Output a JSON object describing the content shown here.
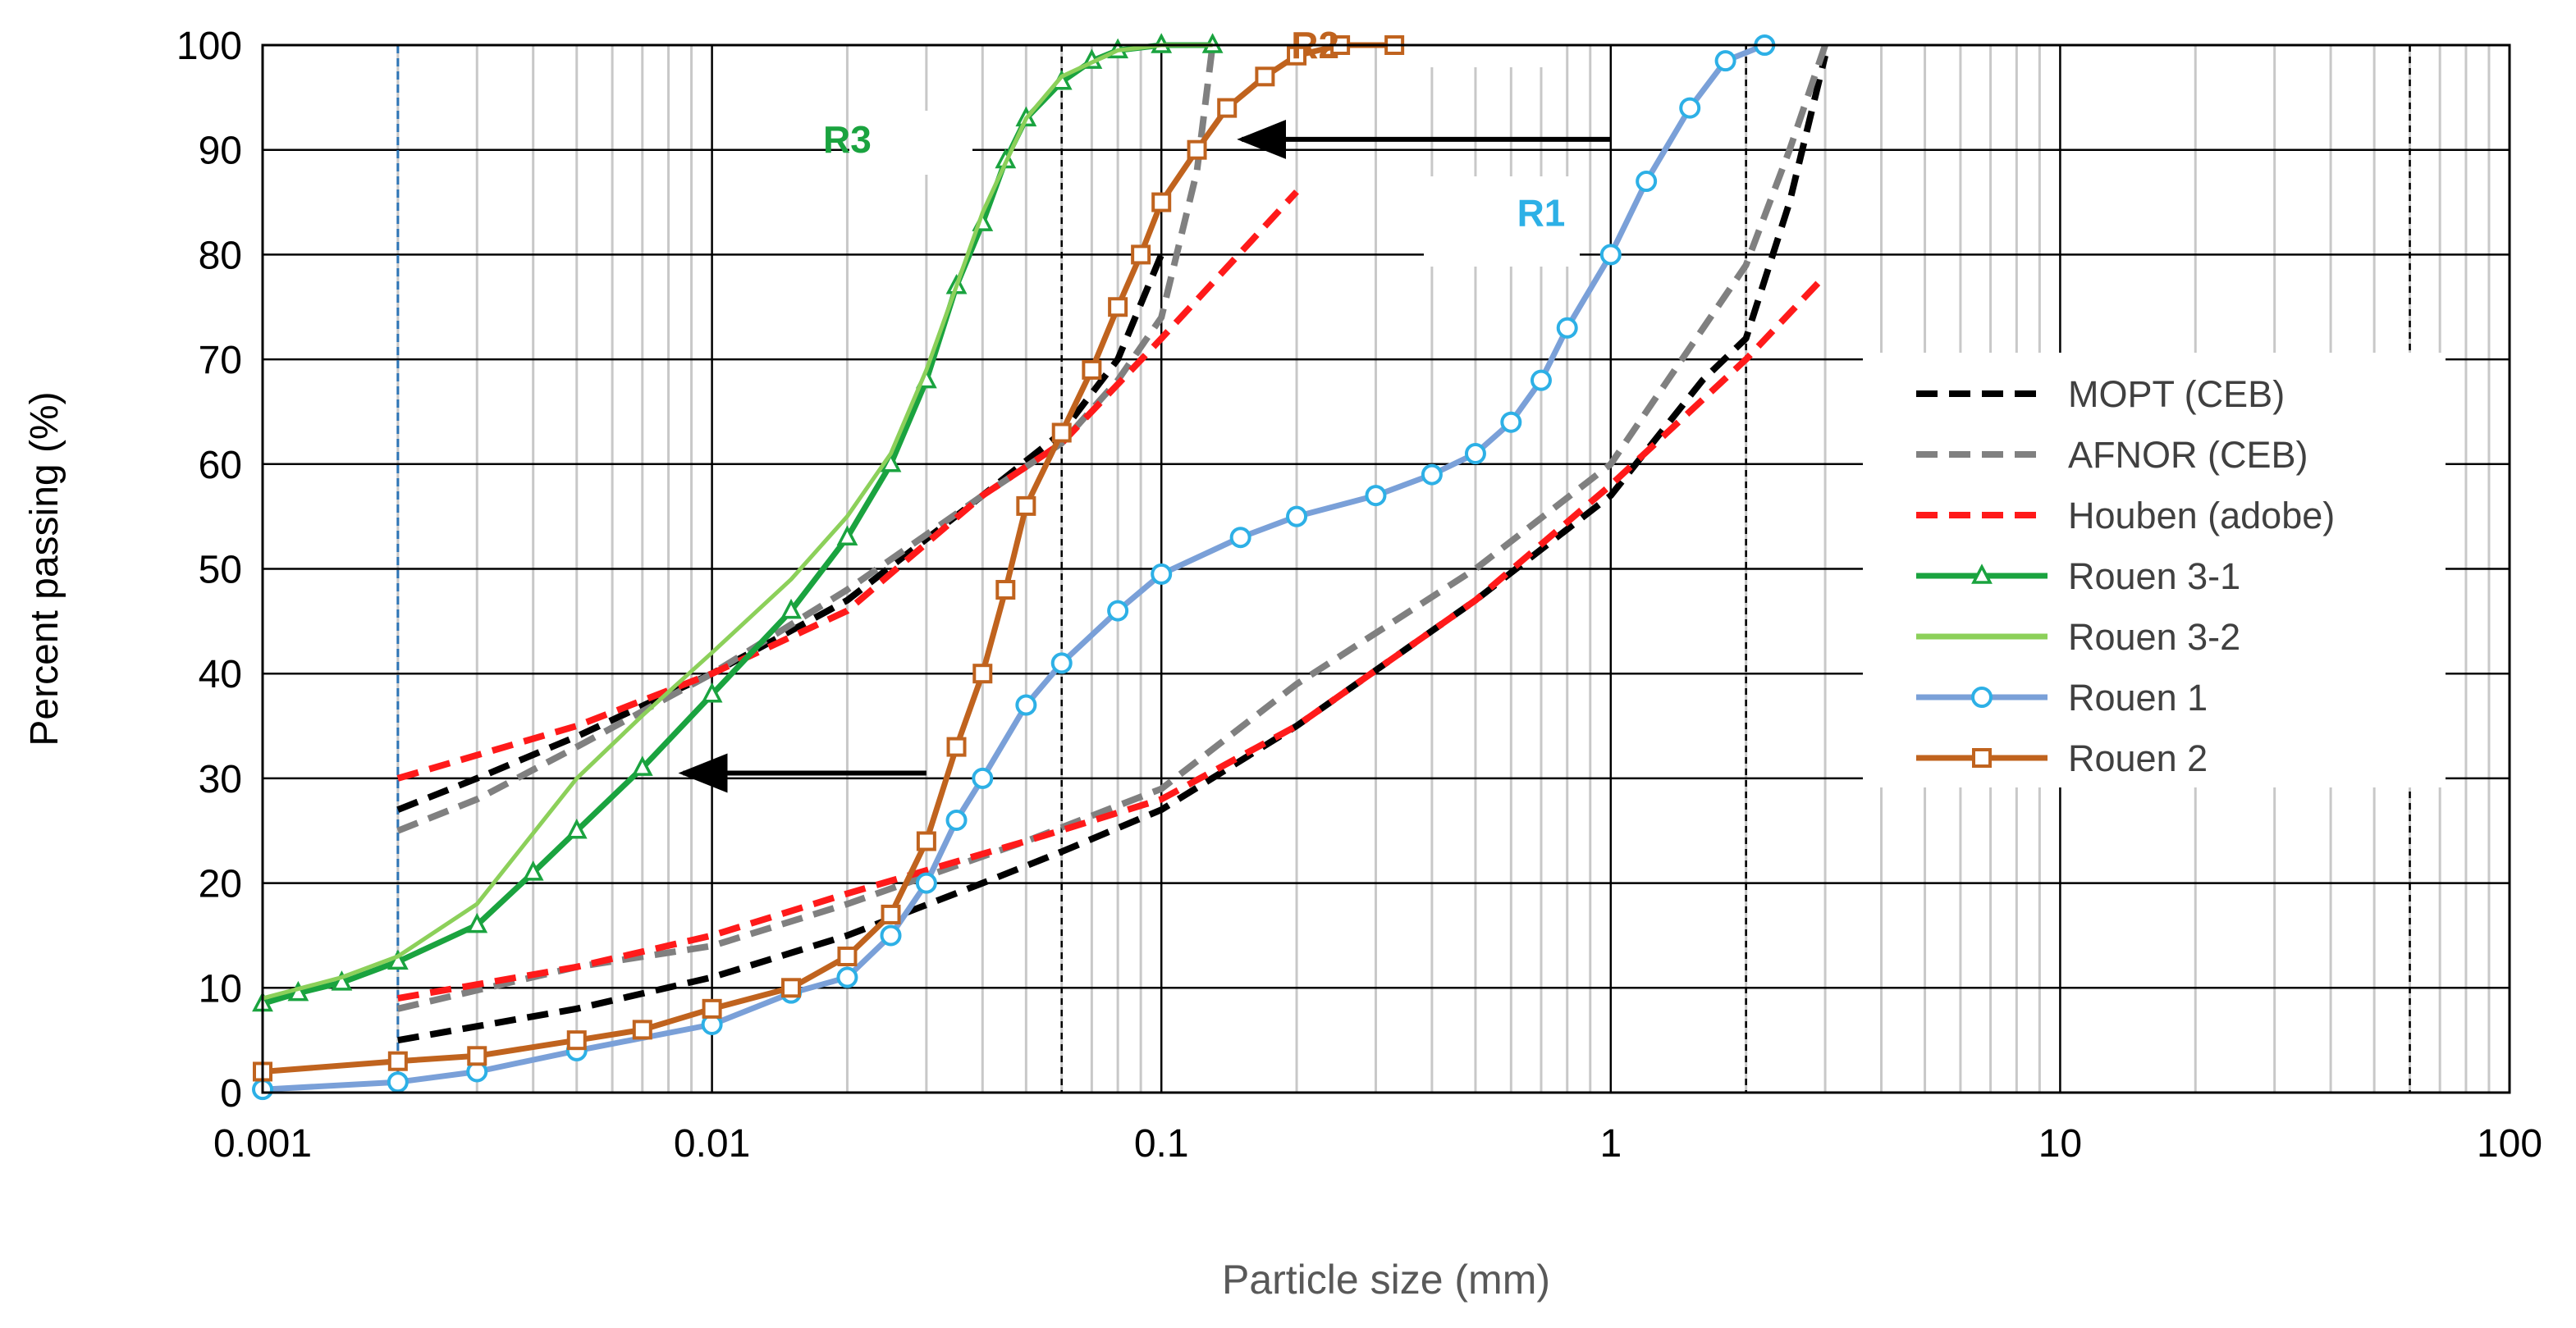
{
  "chart_data": {
    "type": "line",
    "x_scale": "log",
    "xlabel": "Particle size (mm)",
    "ylabel": "Percent passing (%)",
    "xlim": [
      0.001,
      100
    ],
    "ylim": [
      0,
      100
    ],
    "x_ticks": [
      "0.001",
      "0.01",
      "0.1",
      "1",
      "10",
      "100"
    ],
    "y_ticks": [
      "0",
      "10",
      "20",
      "30",
      "40",
      "50",
      "60",
      "70",
      "80",
      "90",
      "100"
    ],
    "grid": true,
    "legend_position": "right",
    "reference_lines_x": [
      0.002,
      0.06,
      2,
      60
    ],
    "series": [
      {
        "name": "MOPT (CEB)",
        "color": "#000000",
        "style": "dashed",
        "marker": "none",
        "points": [
          [
            0.002,
            27
          ],
          [
            0.003,
            30
          ],
          [
            0.005,
            34
          ],
          [
            0.01,
            40
          ],
          [
            0.02,
            47
          ],
          [
            0.04,
            57
          ],
          [
            0.06,
            63
          ],
          [
            0.08,
            70
          ],
          [
            0.1,
            80
          ]
        ]
      },
      {
        "name": "MOPT (CEB)",
        "color": "#000000",
        "style": "dashed",
        "marker": "none",
        "legend": false,
        "points": [
          [
            0.002,
            5
          ],
          [
            0.005,
            8
          ],
          [
            0.01,
            11
          ],
          [
            0.02,
            15
          ],
          [
            0.04,
            20
          ],
          [
            0.06,
            23
          ],
          [
            0.1,
            27
          ],
          [
            0.2,
            35
          ],
          [
            0.5,
            47
          ],
          [
            1,
            57
          ],
          [
            1.6,
            68
          ],
          [
            2,
            72
          ],
          [
            2.5,
            85
          ],
          [
            3,
            99
          ]
        ]
      },
      {
        "name": "AFNOR (CEB)",
        "color": "#808080",
        "style": "dashed",
        "marker": "none",
        "points": [
          [
            0.002,
            25
          ],
          [
            0.003,
            28
          ],
          [
            0.005,
            33
          ],
          [
            0.01,
            40
          ],
          [
            0.02,
            48
          ],
          [
            0.04,
            57
          ],
          [
            0.06,
            62
          ],
          [
            0.08,
            68
          ],
          [
            0.1,
            74
          ],
          [
            0.12,
            88
          ],
          [
            0.13,
            100
          ]
        ]
      },
      {
        "name": "AFNOR (CEB)",
        "color": "#808080",
        "style": "dashed",
        "marker": "none",
        "legend": false,
        "points": [
          [
            0.002,
            8
          ],
          [
            0.005,
            12
          ],
          [
            0.01,
            14
          ],
          [
            0.02,
            18
          ],
          [
            0.05,
            24
          ],
          [
            0.1,
            29
          ],
          [
            0.2,
            39
          ],
          [
            0.5,
            50
          ],
          [
            1,
            60
          ],
          [
            2,
            79
          ],
          [
            2.5,
            90
          ],
          [
            3,
            100
          ]
        ]
      },
      {
        "name": "Houben (adobe)",
        "color": "#ff1a1a",
        "style": "dashed",
        "marker": "none",
        "points": [
          [
            0.002,
            30
          ],
          [
            0.005,
            35
          ],
          [
            0.01,
            40
          ],
          [
            0.02,
            46
          ],
          [
            0.04,
            57
          ],
          [
            0.06,
            62
          ],
          [
            0.1,
            72
          ],
          [
            0.2,
            86
          ]
        ]
      },
      {
        "name": "Houben (adobe)",
        "color": "#ff1a1a",
        "style": "dashed",
        "marker": "none",
        "legend": false,
        "points": [
          [
            0.002,
            9
          ],
          [
            0.005,
            12
          ],
          [
            0.01,
            15
          ],
          [
            0.02,
            19
          ],
          [
            0.05,
            24
          ],
          [
            0.1,
            28
          ],
          [
            0.2,
            35
          ],
          [
            0.5,
            47
          ],
          [
            1,
            58
          ],
          [
            2,
            70
          ],
          [
            3,
            78
          ]
        ]
      },
      {
        "name": "Rouen 3-1",
        "color": "#1aa33f",
        "style": "solid",
        "marker": "triangle",
        "points": [
          [
            0.001,
            8.5
          ],
          [
            0.0012,
            9.5
          ],
          [
            0.0015,
            10.5
          ],
          [
            0.002,
            12.5
          ],
          [
            0.003,
            16
          ],
          [
            0.004,
            21
          ],
          [
            0.005,
            25
          ],
          [
            0.007,
            31
          ],
          [
            0.01,
            38
          ],
          [
            0.015,
            46
          ],
          [
            0.02,
            53
          ],
          [
            0.025,
            60
          ],
          [
            0.03,
            68
          ],
          [
            0.035,
            77
          ],
          [
            0.04,
            83
          ],
          [
            0.045,
            89
          ],
          [
            0.05,
            93
          ],
          [
            0.06,
            96.5
          ],
          [
            0.07,
            98.5
          ],
          [
            0.08,
            99.5
          ],
          [
            0.1,
            100
          ],
          [
            0.13,
            100
          ]
        ]
      },
      {
        "name": "Rouen 3-2",
        "color": "#8cd05a",
        "style": "solid",
        "marker": "none",
        "points": [
          [
            0.001,
            9
          ],
          [
            0.0015,
            11
          ],
          [
            0.002,
            13
          ],
          [
            0.003,
            18
          ],
          [
            0.005,
            30
          ],
          [
            0.007,
            36
          ],
          [
            0.01,
            42
          ],
          [
            0.015,
            49
          ],
          [
            0.02,
            55
          ],
          [
            0.025,
            61
          ],
          [
            0.03,
            69
          ],
          [
            0.035,
            77
          ],
          [
            0.04,
            84
          ],
          [
            0.05,
            93
          ],
          [
            0.06,
            97
          ],
          [
            0.08,
            99.5
          ],
          [
            0.1,
            100
          ],
          [
            0.13,
            100
          ]
        ]
      },
      {
        "name": "Rouen 1",
        "color": "#7aa0d8",
        "marker_color": "#2db0e6",
        "style": "solid",
        "marker": "circle",
        "points": [
          [
            0.001,
            0.3
          ],
          [
            0.002,
            1
          ],
          [
            0.003,
            2
          ],
          [
            0.005,
            4
          ],
          [
            0.01,
            6.5
          ],
          [
            0.015,
            9.5
          ],
          [
            0.02,
            11
          ],
          [
            0.025,
            15
          ],
          [
            0.03,
            20
          ],
          [
            0.035,
            26
          ],
          [
            0.04,
            30
          ],
          [
            0.05,
            37
          ],
          [
            0.06,
            41
          ],
          [
            0.08,
            46
          ],
          [
            0.1,
            49.5
          ],
          [
            0.15,
            53
          ],
          [
            0.2,
            55
          ],
          [
            0.3,
            57
          ],
          [
            0.4,
            59
          ],
          [
            0.5,
            61
          ],
          [
            0.6,
            64
          ],
          [
            0.7,
            68
          ],
          [
            0.8,
            73
          ],
          [
            1,
            80
          ],
          [
            1.2,
            87
          ],
          [
            1.5,
            94
          ],
          [
            1.8,
            98.5
          ],
          [
            2.2,
            100
          ]
        ]
      },
      {
        "name": "Rouen 2",
        "color": "#c0631e",
        "style": "solid",
        "marker": "square",
        "points": [
          [
            0.001,
            2
          ],
          [
            0.002,
            3
          ],
          [
            0.003,
            3.5
          ],
          [
            0.005,
            5
          ],
          [
            0.007,
            6
          ],
          [
            0.01,
            8
          ],
          [
            0.015,
            10
          ],
          [
            0.02,
            13
          ],
          [
            0.025,
            17
          ],
          [
            0.03,
            24
          ],
          [
            0.035,
            33
          ],
          [
            0.04,
            40
          ],
          [
            0.045,
            48
          ],
          [
            0.05,
            56
          ],
          [
            0.06,
            63
          ],
          [
            0.07,
            69
          ],
          [
            0.08,
            75
          ],
          [
            0.09,
            80
          ],
          [
            0.1,
            85
          ],
          [
            0.12,
            90
          ],
          [
            0.14,
            94
          ],
          [
            0.17,
            97
          ],
          [
            0.2,
            99
          ],
          [
            0.25,
            100
          ],
          [
            0.33,
            100
          ]
        ]
      }
    ],
    "annotations": [
      {
        "text": "R1",
        "x": 0.7,
        "y": 84,
        "color": "#2db0e6"
      },
      {
        "text": "R2",
        "x": 0.22,
        "y": 100,
        "color": "#c0631e"
      },
      {
        "text": "R3",
        "x": 0.02,
        "y": 91,
        "color": "#1aa33f"
      }
    ],
    "arrows": [
      {
        "from": [
          1,
          91
        ],
        "to": [
          0.14,
          91
        ]
      },
      {
        "from": [
          0.03,
          30.5
        ],
        "to": [
          0.008,
          30.5
        ]
      }
    ]
  }
}
